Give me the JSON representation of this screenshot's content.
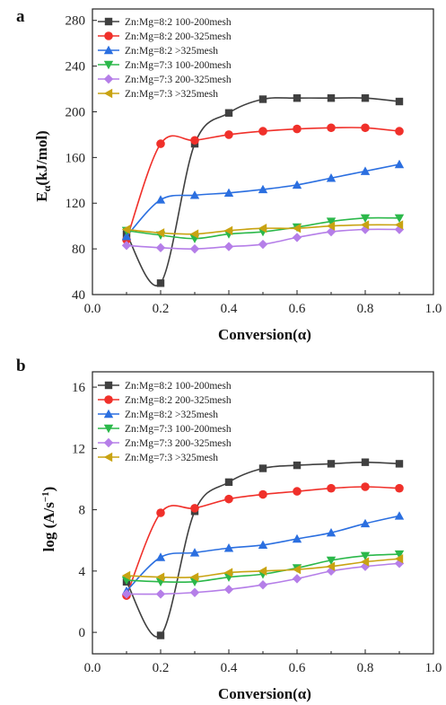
{
  "chart_data": [
    {
      "type": "line",
      "panel_label": "a",
      "xlabel": "Conversion(α)",
      "ylabel_main": "E",
      "ylabel_sub": "α",
      "ylabel_rest": "(kJ/mol)",
      "xlim": [
        0.0,
        1.0
      ],
      "ylim": [
        40,
        290
      ],
      "xticks": [
        "0.0",
        "0.2",
        "0.4",
        "0.6",
        "0.8",
        "1.0"
      ],
      "yticks": [
        "40",
        "80",
        "120",
        "160",
        "200",
        "240",
        "280"
      ],
      "legend_position": "top-left",
      "grid": false,
      "x": [
        0.1,
        0.2,
        0.3,
        0.4,
        0.5,
        0.6,
        0.7,
        0.8,
        0.9
      ],
      "series": [
        {
          "name": "Zn:Mg=8:2 100-200mesh",
          "color": "#404040",
          "marker": "square",
          "values": [
            93,
            50,
            172,
            199,
            211,
            212,
            212,
            212,
            209
          ]
        },
        {
          "name": "Zn:Mg=8:2 200-325mesh",
          "color": "#f0302a",
          "marker": "circle",
          "values": [
            88,
            172,
            175,
            180,
            183,
            185,
            186,
            186,
            183
          ]
        },
        {
          "name": "Zn:Mg=8:2 >325mesh",
          "color": "#2b6fe0",
          "marker": "triangle-up",
          "values": [
            91,
            123,
            127,
            129,
            132,
            136,
            142,
            148,
            154
          ]
        },
        {
          "name": "Zn:Mg=7:3 100-200mesh",
          "color": "#2bb84a",
          "marker": "triangle-down",
          "values": [
            96,
            92,
            89,
            93,
            95,
            99,
            104,
            107,
            107
          ]
        },
        {
          "name": "Zn:Mg=7:3 200-325mesh",
          "color": "#b57ee8",
          "marker": "diamond",
          "values": [
            83,
            81,
            80,
            82,
            84,
            90,
            95,
            97,
            97
          ]
        },
        {
          "name": "Zn:Mg=7:3 >325mesh",
          "color": "#c9a312",
          "marker": "triangle-left",
          "values": [
            97,
            94,
            93,
            96,
            98,
            98,
            100,
            101,
            101
          ]
        }
      ]
    },
    {
      "type": "line",
      "panel_label": "b",
      "xlabel": "Conversion(α)",
      "ylabel_text": "log (A/s",
      "ylabel_sup": "−1",
      "ylabel_close": ")",
      "xlim": [
        0.0,
        1.0
      ],
      "ylim": [
        -1.4,
        17
      ],
      "xticks": [
        "0.0",
        "0.2",
        "0.4",
        "0.6",
        "0.8",
        "1.0"
      ],
      "yticks": [
        "0",
        "4",
        "8",
        "12",
        "16"
      ],
      "legend_position": "top-left",
      "grid": false,
      "x": [
        0.1,
        0.2,
        0.3,
        0.4,
        0.5,
        0.6,
        0.7,
        0.8,
        0.9
      ],
      "series": [
        {
          "name": "Zn:Mg=8:2 100-200mesh",
          "color": "#404040",
          "marker": "square",
          "values": [
            3.3,
            -0.2,
            7.9,
            9.8,
            10.7,
            10.9,
            11.0,
            11.1,
            11.0
          ]
        },
        {
          "name": "Zn:Mg=8:2 200-325mesh",
          "color": "#f0302a",
          "marker": "circle",
          "values": [
            2.4,
            7.8,
            8.1,
            8.7,
            9.0,
            9.2,
            9.4,
            9.5,
            9.4
          ]
        },
        {
          "name": "Zn:Mg=8:2 >325mesh",
          "color": "#2b6fe0",
          "marker": "triangle-up",
          "values": [
            2.7,
            4.9,
            5.2,
            5.5,
            5.7,
            6.1,
            6.5,
            7.1,
            7.6
          ]
        },
        {
          "name": "Zn:Mg=7:3 100-200mesh",
          "color": "#2bb84a",
          "marker": "triangle-down",
          "values": [
            3.4,
            3.3,
            3.3,
            3.6,
            3.8,
            4.2,
            4.7,
            5.0,
            5.1
          ]
        },
        {
          "name": "Zn:Mg=7:3 200-325mesh",
          "color": "#b57ee8",
          "marker": "diamond",
          "values": [
            2.5,
            2.5,
            2.6,
            2.8,
            3.1,
            3.5,
            4.0,
            4.3,
            4.5
          ]
        },
        {
          "name": "Zn:Mg=7:3 >325mesh",
          "color": "#c9a312",
          "marker": "triangle-left",
          "values": [
            3.7,
            3.6,
            3.6,
            3.9,
            4.0,
            4.1,
            4.3,
            4.6,
            4.8
          ]
        }
      ]
    }
  ]
}
